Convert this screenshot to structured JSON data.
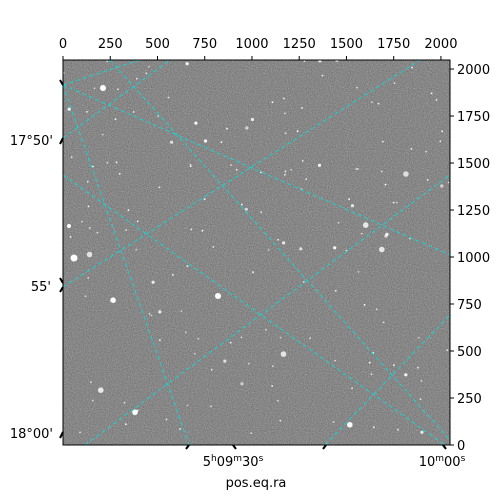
{
  "chart_data": {
    "type": "image",
    "xlabel": "pos.eq.ra",
    "ylabel": "",
    "top_axis": {
      "range": [
        0,
        2048
      ],
      "ticks": [
        0,
        250,
        500,
        750,
        1000,
        1250,
        1500,
        1750,
        2000
      ],
      "labels": [
        "0",
        "250",
        "500",
        "750",
        "1000",
        "1250",
        "1500",
        "1750",
        "2000"
      ]
    },
    "right_axis": {
      "range": [
        0,
        2048
      ],
      "ticks": [
        0,
        250,
        500,
        750,
        1000,
        1250,
        1500,
        1750,
        2000
      ],
      "labels": [
        "0",
        "250",
        "500",
        "750",
        "1000",
        "1250",
        "1500",
        "1750",
        "2000"
      ]
    },
    "bottom_axis": {
      "ticks": [
        "5h09m30s",
        "10m00s"
      ],
      "labels": [
        {
          "base": "5",
          "sup1": "h",
          "mid": "09",
          "sup2": "m",
          "tail": "30",
          "sup3": "s"
        },
        {
          "base": "10",
          "sup1": "m",
          "mid": "00",
          "sup2": "s",
          "tail": "",
          "sup3": ""
        }
      ]
    },
    "left_axis": {
      "ticks": [
        "17°50'",
        "55'",
        "18°00'"
      ],
      "labels": [
        "17°50'",
        "55'",
        "18°00'"
      ]
    },
    "grid": true,
    "grid_color": "#19d3d3",
    "background": "grayscale star field"
  }
}
